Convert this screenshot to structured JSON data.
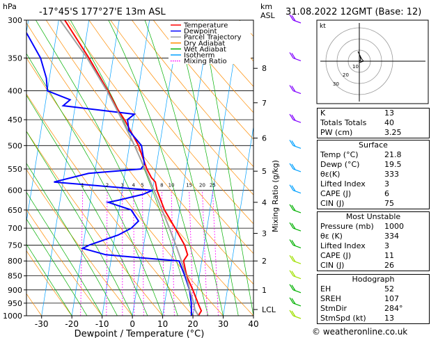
{
  "header": {
    "hpa_label": "hPa",
    "location": "-17°45'S  177°27'E  13m  ASL",
    "km_label": "km",
    "asl_label": "ASL",
    "datetime": "31.08.2022  12GMT  (Base: 12)"
  },
  "legend": [
    {
      "label": "Temperature",
      "color": "#ff0000",
      "style": "solid"
    },
    {
      "label": "Dewpoint",
      "color": "#0000ff",
      "style": "solid"
    },
    {
      "label": "Parcel Trajectory",
      "color": "#a0a0a0",
      "style": "solid"
    },
    {
      "label": "Dry Adiabat",
      "color": "#ff8c00",
      "style": "solid"
    },
    {
      "label": "Wet Adiabat",
      "color": "#00b000",
      "style": "solid"
    },
    {
      "label": "Isotherm",
      "color": "#00a0ff",
      "style": "solid"
    },
    {
      "label": "Mixing Ratio",
      "color": "#ff00ff",
      "style": "dotted"
    }
  ],
  "chart_data": {
    "type": "line",
    "xlabel": "Dewpoint / Temperature (°C)",
    "ylabel": "hPa",
    "xlim": [
      -35,
      40
    ],
    "ylim": [
      1000,
      300
    ],
    "y_scale": "log",
    "x_ticks": [
      "-30",
      "-20",
      "-10",
      "0",
      "10",
      "20",
      "30",
      "40"
    ],
    "y_ticks": [
      "300",
      "350",
      "400",
      "450",
      "500",
      "550",
      "600",
      "650",
      "700",
      "750",
      "800",
      "850",
      "900",
      "950",
      "1000"
    ],
    "km_ticks": [
      {
        "label": "8",
        "p": 365
      },
      {
        "label": "7",
        "p": 420
      },
      {
        "label": "6",
        "p": 485
      },
      {
        "label": "5",
        "p": 555
      },
      {
        "label": "4",
        "p": 630
      },
      {
        "label": "3",
        "p": 715
      },
      {
        "label": "2",
        "p": 800
      },
      {
        "label": "1",
        "p": 900
      },
      {
        "label": "LCL",
        "p": 975
      }
    ],
    "mixing_ratio_label": "Mixing Ratio (g/kg)",
    "mixing_ratio_values": [
      "1",
      "2",
      "3",
      "4",
      "5",
      "8",
      "10",
      "15",
      "20",
      "25"
    ],
    "series": [
      {
        "name": "Temperature",
        "color": "#ff0000",
        "points": [
          [
            1000,
            21.8
          ],
          [
            980,
            22.5
          ],
          [
            950,
            21
          ],
          [
            900,
            18.6
          ],
          [
            850,
            15.8
          ],
          [
            800,
            14
          ],
          [
            780,
            15
          ],
          [
            750,
            13.5
          ],
          [
            700,
            9.5
          ],
          [
            650,
            5
          ],
          [
            600,
            1.5
          ],
          [
            580,
            0.5
          ],
          [
            570,
            -1
          ],
          [
            550,
            -3
          ],
          [
            500,
            -7
          ],
          [
            450,
            -13
          ],
          [
            430,
            -16
          ],
          [
            400,
            -20
          ],
          [
            350,
            -28
          ],
          [
            300,
            -38
          ]
        ]
      },
      {
        "name": "Dewpoint",
        "color": "#0000ff",
        "points": [
          [
            1000,
            19.5
          ],
          [
            950,
            18.8
          ],
          [
            900,
            17.5
          ],
          [
            850,
            15.2
          ],
          [
            800,
            12.5
          ],
          [
            790,
            0
          ],
          [
            780,
            -12
          ],
          [
            760,
            -20
          ],
          [
            750,
            -18
          ],
          [
            720,
            -9
          ],
          [
            700,
            -5
          ],
          [
            680,
            -3
          ],
          [
            650,
            -6
          ],
          [
            630,
            -14
          ],
          [
            625,
            -11
          ],
          [
            610,
            -3
          ],
          [
            600,
            0
          ],
          [
            580,
            -33
          ],
          [
            560,
            -22
          ],
          [
            550,
            -5
          ],
          [
            540,
            -4
          ],
          [
            500,
            -6
          ],
          [
            470,
            -11
          ],
          [
            450,
            -12
          ],
          [
            440,
            -10
          ],
          [
            425,
            -34
          ],
          [
            415,
            -32
          ],
          [
            400,
            -40
          ],
          [
            380,
            -41
          ],
          [
            350,
            -44
          ],
          [
            300,
            -53
          ]
        ]
      },
      {
        "name": "Parcel Trajectory",
        "color": "#a0a0a0",
        "points": [
          [
            1000,
            21.8
          ],
          [
            975,
            20.3
          ],
          [
            950,
            19.6
          ],
          [
            900,
            17.6
          ],
          [
            850,
            15.6
          ],
          [
            800,
            13.3
          ],
          [
            750,
            10.6
          ],
          [
            700,
            7.6
          ],
          [
            650,
            4.2
          ],
          [
            600,
            0.5
          ],
          [
            550,
            -3.6
          ],
          [
            500,
            -8.3
          ],
          [
            450,
            -13.8
          ],
          [
            400,
            -20.3
          ],
          [
            350,
            -28.6
          ],
          [
            300,
            -39.5
          ]
        ]
      }
    ]
  },
  "hodograph": {
    "label": "kt",
    "ring_labels": [
      "10",
      "20",
      "30"
    ]
  },
  "indices": {
    "k_label": "K",
    "k": "13",
    "tt_label": "Totals Totals",
    "tt": "40",
    "pw_label": "PW (cm)",
    "pw": "3.25"
  },
  "surface": {
    "title": "Surface",
    "temp_label": "Temp (°C)",
    "temp": "21.8",
    "dewp_label": "Dewp (°C)",
    "dewp": "19.5",
    "theta_label": "θε(K)",
    "theta": "333",
    "li_label": "Lifted Index",
    "li": "3",
    "cape_label": "CAPE (J)",
    "cape": "6",
    "cin_label": "CIN (J)",
    "cin": "75"
  },
  "most_unstable": {
    "title": "Most Unstable",
    "pres_label": "Pressure (mb)",
    "pres": "1000",
    "theta_label": "θε (K)",
    "theta": "334",
    "li_label": "Lifted Index",
    "li": "3",
    "cape_label": "CAPE (J)",
    "cape": "11",
    "cin_label": "CIN (J)",
    "cin": "26"
  },
  "hodo_table": {
    "title": "Hodograph",
    "eh_label": "EH",
    "eh": "52",
    "srh_label": "SREH",
    "srh": "107",
    "dir_label": "StmDir",
    "dir": "284°",
    "spd_label": "StmSpd (kt)",
    "spd": "13"
  },
  "footer": "© weatheronline.co.uk"
}
